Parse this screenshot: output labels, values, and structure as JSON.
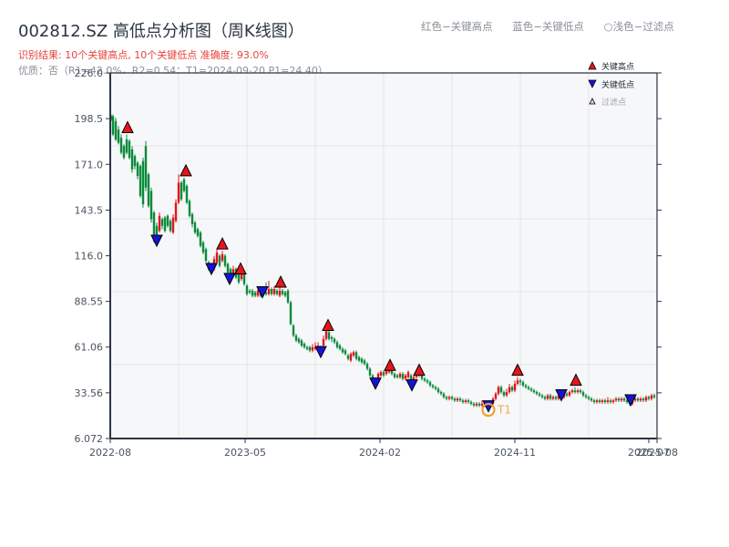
{
  "header": {
    "title": "002812.SZ 高低点分析图（周K线图）",
    "result_line": "识别结果: 10个关键高点, 10个关键低点   准确度: 93.0%",
    "quality_line": "优质：否（R1=42.0%，R2=0.54；T1=2024-09-20 P1=24.40）"
  },
  "color_legend": {
    "items": [
      "红色−关键高点",
      "蓝色−关键低点",
      "○浅色−过滤点"
    ]
  },
  "legend": {
    "items": [
      {
        "label": "关键高点",
        "marker": "triangle-up",
        "color": "#e8141a"
      },
      {
        "label": "关键低点",
        "marker": "triangle-down",
        "color": "#1414d8"
      },
      {
        "label": "过滤点",
        "marker": "triangle-up-hollow",
        "color": "#f7c9c9"
      }
    ]
  },
  "annotation": {
    "label": "T1",
    "color": "#f0a030"
  },
  "colors": {
    "up": "#e0141e",
    "down": "#0a8a3a",
    "axis": "#2b3442",
    "grid": "#e1e4e8",
    "plot_bg": "#f6f7f9"
  },
  "chart_data": {
    "type": "candlestick",
    "title": "002812.SZ 高低点分析图（周K线图）",
    "xlabel": "",
    "ylabel": "",
    "ylim": [
      6.072,
      226.0
    ],
    "yticks": [
      6.072,
      33.56,
      61.06,
      88.55,
      116.0,
      143.5,
      171.0,
      198.5,
      226.0
    ],
    "ytick_labels": [
      "6.072",
      "33.56",
      "61.06",
      "88.55",
      "116.0",
      "143.5",
      "171.0",
      "198.5",
      "226.0"
    ],
    "xtick_labels": [
      "2022-08",
      "2023-05",
      "2024-02",
      "2024-11",
      "2025-07",
      "2025-08"
    ],
    "grid": true,
    "legend_position": "upper right",
    "key_highs": [
      {
        "x": 140,
        "price": 189
      },
      {
        "x": 204,
        "price": 163
      },
      {
        "x": 244,
        "price": 119
      },
      {
        "x": 264,
        "price": 104
      },
      {
        "x": 308,
        "price": 96
      },
      {
        "x": 360,
        "price": 70
      },
      {
        "x": 428,
        "price": 46
      },
      {
        "x": 460,
        "price": 43
      },
      {
        "x": 568,
        "price": 43
      },
      {
        "x": 632,
        "price": 37
      }
    ],
    "key_lows": [
      {
        "x": 172,
        "price": 124
      },
      {
        "x": 232,
        "price": 107
      },
      {
        "x": 252,
        "price": 101
      },
      {
        "x": 288,
        "price": 93
      },
      {
        "x": 352,
        "price": 57
      },
      {
        "x": 412,
        "price": 38
      },
      {
        "x": 452,
        "price": 37
      },
      {
        "x": 536,
        "price": 24.4
      },
      {
        "x": 616,
        "price": 31
      },
      {
        "x": 692,
        "price": 28
      }
    ],
    "t1_point": {
      "x": 536,
      "price": 24.4,
      "date": "2024-09-20"
    },
    "candles": [
      [
        122,
        200,
        198,
        201,
        197
      ],
      [
        124,
        200,
        189,
        201,
        188
      ],
      [
        127,
        197,
        186,
        199,
        185
      ],
      [
        130,
        192,
        184,
        194,
        183
      ],
      [
        133,
        187,
        178,
        189,
        177
      ],
      [
        136,
        182,
        175,
        183,
        174
      ],
      [
        139,
        186,
        178,
        189,
        177
      ],
      [
        142,
        185,
        175,
        186,
        174
      ],
      [
        145,
        180,
        168,
        182,
        166
      ],
      [
        148,
        176,
        170,
        177,
        168
      ],
      [
        151,
        172,
        164,
        173,
        162
      ],
      [
        154,
        170,
        152,
        171,
        151
      ],
      [
        157,
        173,
        147,
        175,
        145
      ],
      [
        160,
        182,
        157,
        185,
        155
      ],
      [
        163,
        165,
        146,
        166,
        145
      ],
      [
        166,
        155,
        138,
        157,
        136
      ],
      [
        169,
        142,
        125,
        143,
        124
      ],
      [
        172,
        134,
        128,
        136,
        127
      ],
      [
        175,
        131,
        140,
        142,
        130
      ],
      [
        178,
        138,
        134,
        139,
        132
      ],
      [
        181,
        139,
        131,
        140,
        130
      ],
      [
        184,
        140,
        134,
        141,
        133
      ],
      [
        187,
        137,
        131,
        138,
        130
      ],
      [
        190,
        130,
        139,
        141,
        129
      ],
      [
        193,
        137,
        148,
        150,
        136
      ],
      [
        196,
        148,
        160,
        165,
        147
      ],
      [
        199,
        160,
        150,
        161,
        149
      ],
      [
        202,
        162,
        155,
        163,
        154
      ],
      [
        205,
        158,
        148,
        159,
        147
      ],
      [
        208,
        149,
        140,
        150,
        139
      ],
      [
        211,
        141,
        135,
        142,
        133
      ],
      [
        214,
        136,
        130,
        137,
        129
      ],
      [
        217,
        132,
        128,
        133,
        127
      ],
      [
        220,
        130,
        122,
        131,
        121
      ],
      [
        223,
        124,
        118,
        125,
        117
      ],
      [
        226,
        120,
        113,
        121,
        112
      ],
      [
        229,
        112,
        108,
        113,
        107
      ],
      [
        232,
        110,
        108,
        111,
        107
      ],
      [
        235,
        108,
        114,
        116,
        107
      ],
      [
        238,
        112,
        118,
        120,
        111
      ],
      [
        241,
        116,
        110,
        117,
        109
      ],
      [
        244,
        113,
        117,
        119,
        112
      ],
      [
        247,
        116,
        110,
        117,
        109
      ],
      [
        250,
        111,
        106,
        112,
        105
      ],
      [
        253,
        108,
        102,
        109,
        101
      ],
      [
        256,
        104,
        108,
        110,
        103
      ],
      [
        259,
        108,
        103,
        109,
        102
      ],
      [
        262,
        105,
        100,
        106,
        99
      ],
      [
        265,
        102,
        106,
        108,
        101
      ],
      [
        268,
        106,
        99,
        107,
        98
      ],
      [
        271,
        98,
        93,
        99,
        92
      ],
      [
        274,
        95,
        94,
        96,
        93
      ],
      [
        277,
        95,
        92,
        96,
        91
      ],
      [
        280,
        94,
        92,
        95,
        91
      ],
      [
        283,
        92,
        95,
        97,
        91
      ],
      [
        286,
        95,
        92,
        97,
        91
      ],
      [
        289,
        93,
        94,
        96,
        92
      ],
      [
        292,
        94,
        93,
        100,
        92
      ],
      [
        295,
        93,
        96,
        101,
        92
      ],
      [
        298,
        96,
        93,
        97,
        92
      ],
      [
        301,
        93,
        96,
        98,
        92
      ],
      [
        304,
        95,
        93,
        96,
        92
      ],
      [
        307,
        92,
        95,
        97,
        91
      ],
      [
        310,
        95,
        93,
        96,
        92
      ],
      [
        313,
        94,
        92,
        95,
        91
      ],
      [
        316,
        95,
        88,
        96,
        87
      ],
      [
        319,
        88,
        75,
        89,
        74
      ],
      [
        322,
        74,
        68,
        75,
        67
      ],
      [
        325,
        68,
        65,
        69,
        64
      ],
      [
        328,
        66,
        64,
        67,
        63
      ],
      [
        331,
        65,
        62,
        66,
        61
      ],
      [
        334,
        63,
        61,
        64,
        60
      ],
      [
        337,
        61,
        60,
        62,
        59
      ],
      [
        340,
        61,
        59,
        62,
        58
      ],
      [
        343,
        59,
        61,
        63,
        58
      ],
      [
        346,
        60,
        61,
        64,
        59
      ],
      [
        349,
        59,
        62,
        64,
        58
      ],
      [
        352,
        61,
        60,
        62,
        57
      ],
      [
        355,
        62,
        66,
        68,
        61
      ],
      [
        358,
        66,
        71,
        72,
        65
      ],
      [
        361,
        70,
        66,
        72,
        65
      ],
      [
        364,
        67,
        66,
        68,
        64
      ],
      [
        367,
        66,
        64,
        67,
        63
      ],
      [
        370,
        64,
        61,
        65,
        60
      ],
      [
        373,
        62,
        60,
        63,
        59
      ],
      [
        376,
        60,
        58,
        61,
        57
      ],
      [
        379,
        59,
        57,
        60,
        56
      ],
      [
        382,
        56,
        54,
        57,
        53
      ],
      [
        385,
        53,
        57,
        58,
        52
      ],
      [
        388,
        56,
        58,
        59,
        55
      ],
      [
        391,
        58,
        54,
        59,
        53
      ],
      [
        394,
        55,
        53,
        56,
        52
      ],
      [
        397,
        54,
        52,
        55,
        51
      ],
      [
        400,
        53,
        51,
        54,
        50
      ],
      [
        403,
        51,
        48,
        52,
        47
      ],
      [
        406,
        48,
        44,
        49,
        43
      ],
      [
        409,
        44,
        41,
        45,
        40
      ],
      [
        412,
        42,
        41,
        43,
        38
      ],
      [
        415,
        42,
        45,
        46,
        41
      ],
      [
        418,
        44,
        46,
        47,
        43
      ],
      [
        421,
        46,
        44,
        47,
        43
      ],
      [
        424,
        45,
        47,
        48,
        44
      ],
      [
        427,
        46,
        48,
        49,
        45
      ],
      [
        430,
        47,
        45,
        48,
        44
      ],
      [
        433,
        45,
        43,
        46,
        42
      ],
      [
        436,
        44,
        43,
        45,
        42
      ],
      [
        439,
        43,
        45,
        46,
        42
      ],
      [
        442,
        45,
        42,
        46,
        41
      ],
      [
        445,
        42,
        44,
        45,
        41
      ],
      [
        448,
        43,
        46,
        47,
        42
      ],
      [
        451,
        44,
        40,
        45,
        39
      ],
      [
        454,
        41,
        43,
        44,
        38
      ],
      [
        457,
        43,
        45,
        46,
        42
      ],
      [
        460,
        45,
        44,
        46,
        43
      ],
      [
        463,
        44,
        42,
        45,
        41
      ],
      [
        466,
        42,
        41,
        43,
        40
      ],
      [
        469,
        41,
        40,
        42,
        39
      ],
      [
        472,
        40,
        38,
        41,
        37
      ],
      [
        475,
        38,
        37,
        39,
        36
      ],
      [
        478,
        37,
        36,
        38,
        35
      ],
      [
        481,
        36,
        34,
        37,
        33
      ],
      [
        484,
        34,
        33,
        35,
        32
      ],
      [
        487,
        33,
        31,
        34,
        30
      ],
      [
        490,
        31,
        30,
        32,
        29
      ],
      [
        493,
        30,
        31,
        32,
        29
      ],
      [
        496,
        31,
        30,
        32,
        29
      ],
      [
        499,
        30,
        29,
        31,
        28
      ],
      [
        502,
        29,
        30,
        31,
        28
      ],
      [
        505,
        30,
        29,
        31,
        28
      ],
      [
        508,
        29,
        28,
        30,
        27
      ],
      [
        511,
        28,
        29,
        30,
        27
      ],
      [
        514,
        29,
        28,
        30,
        27
      ],
      [
        517,
        28,
        27,
        29,
        26
      ],
      [
        520,
        27,
        26,
        28,
        25
      ],
      [
        523,
        26,
        27,
        28,
        25
      ],
      [
        526,
        27,
        26,
        28,
        25
      ],
      [
        529,
        26,
        27,
        29,
        25
      ],
      [
        532,
        27,
        26,
        28,
        25
      ],
      [
        535,
        26,
        25,
        27,
        24.4
      ],
      [
        538,
        25,
        27,
        29,
        24.8
      ],
      [
        541,
        27,
        30,
        31,
        26
      ],
      [
        544,
        30,
        33,
        34,
        29
      ],
      [
        547,
        33,
        37,
        38,
        32
      ],
      [
        550,
        37,
        34,
        38,
        33
      ],
      [
        553,
        34,
        32,
        35,
        31
      ],
      [
        556,
        32,
        34,
        36,
        31
      ],
      [
        559,
        34,
        37,
        39,
        33
      ],
      [
        562,
        37,
        35,
        38,
        34
      ],
      [
        565,
        35,
        39,
        41,
        34
      ],
      [
        568,
        39,
        41,
        43,
        38
      ],
      [
        571,
        41,
        40,
        42,
        38
      ],
      [
        574,
        40,
        38,
        41,
        37
      ],
      [
        577,
        38,
        37,
        39,
        36
      ],
      [
        580,
        37,
        36,
        38,
        35
      ],
      [
        583,
        36,
        35,
        37,
        34
      ],
      [
        586,
        35,
        34,
        36,
        33
      ],
      [
        589,
        34,
        33,
        35,
        32
      ],
      [
        592,
        33,
        32,
        34,
        31
      ],
      [
        595,
        32,
        31,
        33,
        30
      ],
      [
        598,
        31,
        30,
        32,
        29
      ],
      [
        601,
        30,
        32,
        33,
        29
      ],
      [
        604,
        32,
        30,
        33,
        29
      ],
      [
        607,
        30,
        31,
        32,
        29
      ],
      [
        610,
        31,
        30,
        32,
        29
      ],
      [
        613,
        30,
        32,
        33,
        29
      ],
      [
        616,
        32,
        31,
        33,
        30
      ],
      [
        619,
        31,
        33,
        34,
        30
      ],
      [
        622,
        33,
        32,
        34,
        31
      ],
      [
        625,
        32,
        34,
        35,
        31
      ],
      [
        628,
        34,
        35,
        36,
        33
      ],
      [
        631,
        35,
        34,
        37,
        33
      ],
      [
        634,
        34,
        35,
        36,
        33
      ],
      [
        637,
        35,
        34,
        36,
        33
      ],
      [
        640,
        34,
        32,
        35,
        31
      ],
      [
        643,
        32,
        31,
        33,
        30
      ],
      [
        646,
        31,
        30,
        32,
        29
      ],
      [
        649,
        30,
        29,
        31,
        28
      ],
      [
        652,
        29,
        28,
        30,
        27
      ],
      [
        655,
        28,
        29,
        30,
        27
      ],
      [
        658,
        29,
        28,
        30,
        27
      ],
      [
        661,
        28,
        29,
        30,
        27
      ],
      [
        664,
        29,
        28,
        30,
        27
      ],
      [
        667,
        28,
        29,
        31,
        27
      ],
      [
        670,
        29,
        28,
        30,
        27
      ],
      [
        673,
        28,
        29,
        30,
        27
      ],
      [
        676,
        29,
        30,
        31,
        28
      ],
      [
        679,
        30,
        29,
        31,
        28
      ],
      [
        682,
        29,
        30,
        31,
        28
      ],
      [
        685,
        30,
        29,
        31,
        28
      ],
      [
        688,
        29,
        28,
        30,
        27
      ],
      [
        691,
        28,
        27,
        29,
        26
      ],
      [
        694,
        27,
        29,
        30,
        26
      ],
      [
        697,
        29,
        30,
        31,
        28
      ],
      [
        700,
        30,
        29,
        31,
        28
      ],
      [
        703,
        29,
        30,
        31,
        28
      ],
      [
        706,
        30,
        29,
        31,
        28
      ],
      [
        709,
        29,
        31,
        32,
        28
      ],
      [
        712,
        31,
        30,
        32,
        29
      ],
      [
        715,
        30,
        32,
        33,
        29
      ],
      [
        718,
        32,
        31,
        33,
        30
      ]
    ]
  }
}
